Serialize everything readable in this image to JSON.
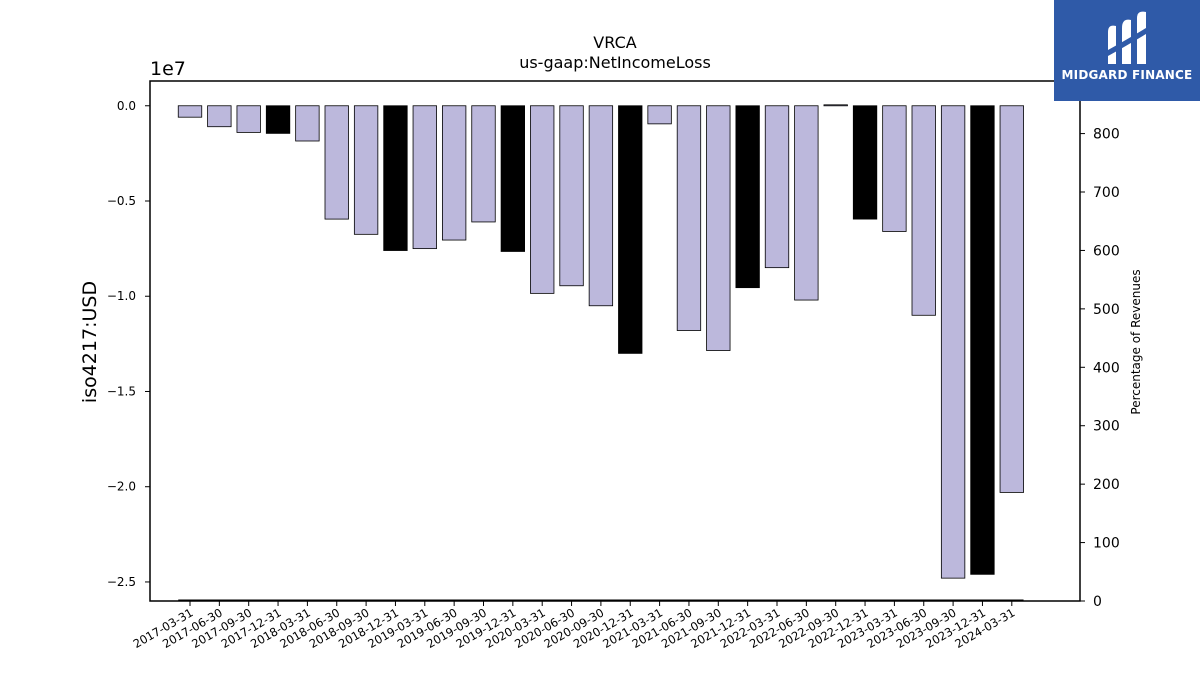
{
  "chart_data": {
    "type": "bar",
    "title": "VRCA",
    "subtitle": "us-gaap:NetIncomeLoss",
    "ylabel": "iso4217:USD",
    "y_offset_label": "1e7",
    "y2label": "Percentage of Revenues",
    "ylim": [
      -26000000,
      1300000
    ],
    "y2lim": [
      0,
      890
    ],
    "yticks": [
      0.0,
      -0.5,
      -1.0,
      -1.5,
      -2.0,
      -2.5
    ],
    "y2ticks": [
      0,
      100,
      200,
      300,
      400,
      500,
      600,
      700,
      800
    ],
    "grid": false,
    "categories": [
      "2017-03-31",
      "2017-06-30",
      "2017-09-30",
      "2017-12-31",
      "2018-03-31",
      "2018-06-30",
      "2018-09-30",
      "2018-12-31",
      "2019-03-31",
      "2019-06-30",
      "2019-09-30",
      "2019-12-31",
      "2020-03-31",
      "2020-06-30",
      "2020-09-30",
      "2020-12-31",
      "2021-03-31",
      "2021-06-30",
      "2021-09-30",
      "2021-12-31",
      "2022-03-31",
      "2022-06-30",
      "2022-09-30",
      "2022-12-31",
      "2023-03-31",
      "2023-06-30",
      "2023-09-30",
      "2023-12-31",
      "2024-03-31"
    ],
    "values": [
      -600000,
      -1100000,
      -1400000,
      -1450000,
      -1850000,
      -5950000,
      -6750000,
      -7600000,
      -7500000,
      -7050000,
      -6100000,
      -7650000,
      -9850000,
      -9450000,
      -10500000,
      -13000000,
      -950000,
      -11800000,
      -12850000,
      -9550000,
      -8500000,
      -10200000,
      50000,
      -5950000,
      -6600000,
      -11000000,
      -24800000,
      -24600000,
      -20300000
    ],
    "annual": [
      false,
      false,
      false,
      true,
      false,
      false,
      false,
      true,
      false,
      false,
      false,
      true,
      false,
      false,
      false,
      true,
      false,
      false,
      false,
      true,
      false,
      false,
      false,
      true,
      false,
      false,
      false,
      true,
      false
    ],
    "colors": {
      "quarterly": "#bcb8dc",
      "annual": "#000000",
      "edge": "#000000"
    }
  },
  "logo": {
    "text": "MIDGARD FINANCE",
    "background": "#2f5aa8"
  }
}
